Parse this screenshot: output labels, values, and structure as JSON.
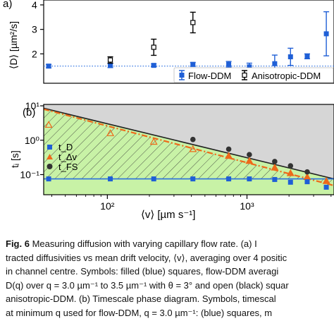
{
  "figure": {
    "panel_a_label": "a)",
    "panel_b_label": "(b)",
    "panel_a_ylabel": "⟨D⟩ [µm²/s]",
    "panel_b_ylabel": "tᵢ [s]",
    "xlabel": "⟨v⟩ [µm s⁻¹]",
    "colors": {
      "flow": "#1f5fd6",
      "aniso": "#000000",
      "orange": "#ee6a1a",
      "gray_bg": "#d6d6d6",
      "green_bg": "#c8f2a6",
      "hline": "#2a6fe0"
    }
  },
  "chart_data": [
    {
      "type": "scatter",
      "panel": "a",
      "ylabel": "⟨D⟩ [µm²/s]",
      "xscale": "log",
      "xlim": [
        35,
        4200
      ],
      "ylim": [
        0.8,
        4.2
      ],
      "yticks": [
        "2",
        "3",
        "4"
      ],
      "legend_position": "bottom-right",
      "hline": 1.5,
      "series": [
        {
          "name": "Flow-DDM",
          "marker": "filled-square",
          "x": [
            38,
            105,
            215,
            410,
            740,
            1040,
            1580,
            2050,
            2700,
            3700
          ],
          "y": [
            1.5,
            1.52,
            1.53,
            1.57,
            1.57,
            1.47,
            1.6,
            1.88,
            1.9,
            2.82
          ],
          "err": [
            0.07,
            0.08,
            0.06,
            0.08,
            0.12,
            0.15,
            0.35,
            0.35,
            0.1,
            0.9
          ]
        },
        {
          "name": "Anisotropic-DDM",
          "marker": "open-square",
          "x": [
            105,
            215,
            410
          ],
          "y": [
            1.75,
            2.27,
            3.28
          ],
          "err": [
            0.13,
            0.33,
            0.42
          ]
        }
      ]
    },
    {
      "type": "scatter",
      "panel": "b",
      "ylabel": "tᵢ [s]",
      "xlabel": "⟨v⟩ [µm s⁻¹]",
      "xscale": "log",
      "yscale": "log",
      "xlim": [
        35,
        4200
      ],
      "ylim": [
        0.026,
        11
      ],
      "xticks": [
        "10²",
        "10³"
      ],
      "yticks": [
        "10¹",
        "10⁰",
        "10⁻¹"
      ],
      "legend_position": "top-left",
      "series": [
        {
          "name": "t_D",
          "marker": "filled-square",
          "x": [
            38,
            105,
            215,
            410,
            740,
            1040,
            1580,
            2050,
            2700,
            3700
          ],
          "y": [
            0.075,
            0.075,
            0.075,
            0.075,
            0.075,
            0.075,
            0.072,
            0.06,
            0.062,
            0.043
          ]
        },
        {
          "name": "t_Δv",
          "marker": "triangle",
          "x": [
            38,
            105,
            215,
            410,
            740,
            1040,
            1580,
            2050,
            2700,
            3700
          ],
          "y": [
            2.8,
            1.6,
            0.9,
            0.55,
            0.35,
            0.25,
            0.16,
            0.11,
            0.085,
            0.065
          ]
        },
        {
          "name": "t_FS",
          "marker": "filled-circle",
          "x": [
            410,
            740,
            1040,
            1580,
            2050,
            2700
          ],
          "y": [
            1.05,
            0.55,
            0.38,
            0.24,
            0.18,
            0.12
          ]
        }
      ],
      "lines": [
        {
          "name": "t_D",
          "y": 0.075
        },
        {
          "name": "t_FS",
          "x0": 35,
          "y0": 8.5,
          "x1": 4200,
          "y1": 0.075
        },
        {
          "name": "t_Δv",
          "x0": 35,
          "y0": 8.0,
          "x1": 4200,
          "y1": 0.048
        }
      ],
      "legend": [
        "t_D",
        "t_Δv",
        "t_FS"
      ]
    }
  ],
  "caption": {
    "line1_bold": "Fig.   6",
    "line1": " Measuring diffusion with varying capillary flow rate.  (a) I",
    "line2": "tracted diffusivities vs mean drift velocity, ⟨v⟩, averaging over 4 positic",
    "line3": "in channel centre. Symbols: filled (blue) squares, flow-DDM averagi",
    "line4": "D(q) over q = 3.0 µm⁻¹ to 3.5 µm⁻¹ with θ = 3° and open (black) squar",
    "line5": "anisotropic-DDM.  (b)  Timescale phase diagram.  Symbols, timescal",
    "line6": "at minimum q used for flow-DDM, q = 3.0 µm⁻¹: (blue) squares, m"
  }
}
